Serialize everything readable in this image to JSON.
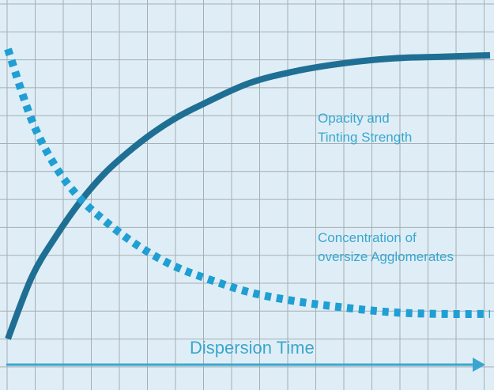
{
  "colors": {
    "background": "#dfeef6",
    "grid": "#a5aeb3",
    "opacity_line": "#1f6f95",
    "agglomerate_line": "#1f9fd3",
    "text": "#3aa6cf",
    "axis_arrow": "#3aa6cf"
  },
  "annotations": {
    "opacity_line1": "Opacity and",
    "opacity_line2": "Tinting Strength",
    "agglom_line1": "Concentration of",
    "agglom_line2": "oversize Agglomerates",
    "x_axis": "Dispersion Time"
  },
  "chart_data": {
    "type": "line",
    "title": "",
    "xlabel": "Dispersion Time",
    "ylabel": "",
    "grid": true,
    "legend": "none",
    "xlim": [
      0,
      10
    ],
    "ylim": [
      0,
      10
    ],
    "series": [
      {
        "name": "Opacity and Tinting Strength",
        "style": "solid",
        "x": [
          0,
          0.5,
          1,
          1.5,
          2,
          2.5,
          3,
          3.5,
          4,
          5,
          6,
          7,
          8,
          9,
          10
        ],
        "y": [
          0.6,
          2.6,
          3.9,
          5.0,
          5.9,
          6.6,
          7.2,
          7.7,
          8.1,
          8.8,
          9.2,
          9.45,
          9.6,
          9.65,
          9.7
        ]
      },
      {
        "name": "Concentration of oversize Agglomerates",
        "style": "dotted",
        "x": [
          0,
          0.5,
          1,
          1.5,
          2,
          2.5,
          3,
          3.5,
          4,
          5,
          6,
          7,
          8,
          9,
          10
        ],
        "y": [
          9.9,
          7.6,
          6.1,
          5.1,
          4.4,
          3.8,
          3.3,
          2.9,
          2.6,
          2.1,
          1.8,
          1.6,
          1.45,
          1.4,
          1.4
        ]
      }
    ]
  }
}
